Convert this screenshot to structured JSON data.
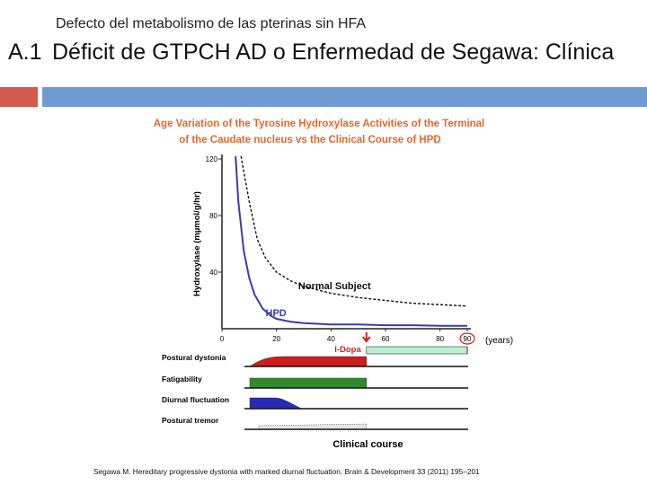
{
  "slide": {
    "subtitle": "Defecto del metabolismo de las pterinas sin HFA",
    "number": "A.1",
    "title": "Déficit de GTPCH AD o Enfermedad de Segawa: Clínica",
    "citation": "Segawa M. Hereditary progressive dystonia with marked diurnal fluctuation. Brain & Development 33 (2011) 195–201",
    "accent_colors": {
      "red": "#d35a4f",
      "blue": "#6f9bd1"
    }
  },
  "chart_data": {
    "type": "line",
    "title_lines": [
      "Age Variation of the Tyrosine Hydroxylase Activities of the Terminal",
      "of the Caudate nucleus vs the Clinical Course of HPD"
    ],
    "ylabel": "Hydroxylase (mµmol/g/hr)",
    "xlabel": "(years)",
    "xlim": [
      0,
      90
    ],
    "ylim": [
      0,
      120
    ],
    "x_ticks": [
      "0",
      "20",
      "40",
      "60",
      "80",
      "90"
    ],
    "y_ticks": [
      "40",
      "80",
      "120"
    ],
    "title_color": "#e06a2c",
    "series": [
      {
        "name": "Normal Subject",
        "style": "dashed",
        "color": "#111111",
        "x": [
          7,
          10,
          13,
          16,
          20,
          25,
          30,
          40,
          50,
          60,
          70,
          80,
          90
        ],
        "y": [
          125,
          90,
          63,
          50,
          40,
          34,
          30,
          25,
          22,
          20,
          18,
          17,
          16
        ]
      },
      {
        "name": "HPD",
        "style": "solid",
        "color": "#3b3bb0",
        "x": [
          5,
          6,
          8,
          10,
          12,
          15,
          18,
          20,
          25,
          30,
          40,
          50,
          60,
          70,
          80,
          90
        ],
        "y": [
          125,
          90,
          55,
          36,
          24,
          14,
          9,
          7,
          5,
          4,
          3,
          3,
          2.5,
          2.5,
          2,
          2
        ]
      }
    ],
    "annotations": {
      "treatment_label": "l-Dopa",
      "treatment_color": "#cc2222",
      "treatment_x": 53,
      "circled_tick": "90",
      "treatment_band_color": "#b9f0d2"
    },
    "clinical_course": {
      "label": "Clinical course",
      "rows": [
        {
          "name": "Postural dystonia",
          "color": "#d01c1c",
          "shape": "rising"
        },
        {
          "name": "Fatigability",
          "color": "#2f8a2f",
          "shape": "flat"
        },
        {
          "name": "Diurnal fluctuation",
          "color": "#2a2ab8",
          "shape": "falling"
        },
        {
          "name": "Postural tremor",
          "color": "#999999",
          "shape": "dotted"
        }
      ]
    }
  }
}
